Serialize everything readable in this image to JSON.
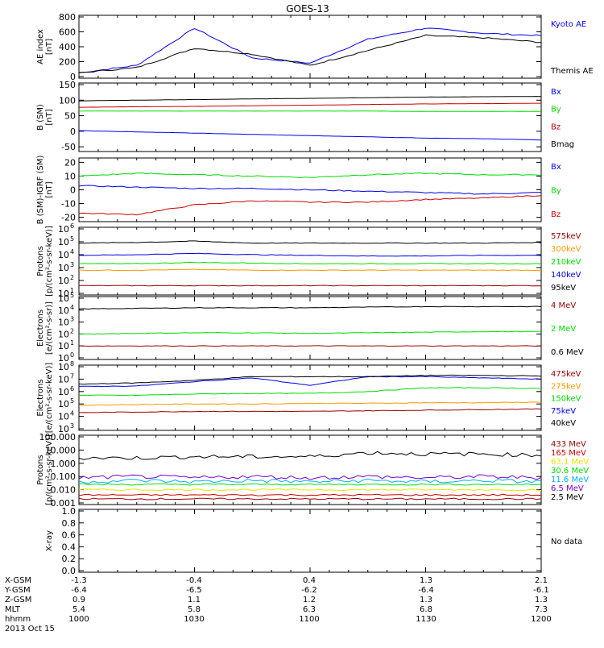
{
  "title": "GOES-13",
  "colors": {
    "black": "#000000",
    "blue": "#0000ee",
    "green": "#00dd00",
    "red": "#cc0000",
    "orange": "#ff9900",
    "yellow": "#e6e600",
    "cyan": "#00b0ff",
    "purple": "#7700cc",
    "darkred": "#990000"
  },
  "panels": [
    {
      "id": "ae",
      "ylabel_lines": [
        "AE index",
        "[nT]"
      ],
      "ticks": [
        {
          "v": 0,
          "t": "0"
        },
        {
          "v": 200,
          "t": "200"
        },
        {
          "v": 400,
          "t": "400"
        },
        {
          "v": 600,
          "t": "600"
        },
        {
          "v": 800,
          "t": "800"
        }
      ],
      "legend": [
        {
          "text": "Kyoto AE",
          "color": "blue"
        },
        {
          "text": "Themis AE",
          "color": "black"
        }
      ]
    },
    {
      "id": "bsm",
      "ylabel_lines": [
        "B (SM)",
        "[nT]"
      ],
      "ticks": [
        {
          "v": -50,
          "t": "-50"
        },
        {
          "v": 0,
          "t": "0"
        },
        {
          "v": 50,
          "t": "50"
        },
        {
          "v": 100,
          "t": "100"
        },
        {
          "v": 150,
          "t": "150"
        }
      ],
      "legend": [
        {
          "text": "Bx",
          "color": "blue"
        },
        {
          "text": "By",
          "color": "green"
        },
        {
          "text": "Bz",
          "color": "red"
        },
        {
          "text": "Bmag",
          "color": "black"
        }
      ]
    },
    {
      "id": "bigrf",
      "ylabel_lines": [
        "B (SM)-IGRF (SM)",
        "[nT]"
      ],
      "ticks": [
        {
          "v": -20,
          "t": "-20"
        },
        {
          "v": -10,
          "t": "-10"
        },
        {
          "v": 0,
          "t": "0"
        },
        {
          "v": 10,
          "t": "10"
        },
        {
          "v": 20,
          "t": "20"
        }
      ],
      "legend": [
        {
          "text": "Bx",
          "color": "blue"
        },
        {
          "text": "By",
          "color": "green"
        },
        {
          "text": "Bz",
          "color": "red"
        }
      ]
    },
    {
      "id": "protons_low",
      "ylabel_lines": [
        "Protons",
        "[p/(cm²-s-sr-keV)]"
      ],
      "ticks": [
        {
          "v": 1,
          "t": "10",
          "sup": "1"
        },
        {
          "v": 2,
          "t": "10",
          "sup": "2"
        },
        {
          "v": 3,
          "t": "10",
          "sup": "3"
        },
        {
          "v": 4,
          "t": "10",
          "sup": "4"
        },
        {
          "v": 5,
          "t": "10",
          "sup": "5"
        },
        {
          "v": 6,
          "t": "10",
          "sup": "6"
        }
      ],
      "legend": [
        {
          "text": "575keV",
          "color": "darkred"
        },
        {
          "text": "300keV",
          "color": "orange"
        },
        {
          "text": "210keV",
          "color": "green"
        },
        {
          "text": "140keV",
          "color": "blue"
        },
        {
          "text": "95keV",
          "color": "black"
        }
      ]
    },
    {
      "id": "electrons_mev",
      "ylabel_lines": [
        "Electrons",
        "[e/(cm²-s-sr)]"
      ],
      "ticks": [
        {
          "v": 0,
          "t": "10",
          "sup": "0"
        },
        {
          "v": 1,
          "t": "10",
          "sup": "1"
        },
        {
          "v": 2,
          "t": "10",
          "sup": "2"
        },
        {
          "v": 3,
          "t": "10",
          "sup": "3"
        },
        {
          "v": 4,
          "t": "10",
          "sup": "4"
        },
        {
          "v": 5,
          "t": "10",
          "sup": "5"
        }
      ],
      "legend": [
        {
          "text": "4 MeV",
          "color": "darkred"
        },
        {
          "text": "2 MeV",
          "color": "green"
        },
        {
          "text": "0.6 MeV",
          "color": "black"
        }
      ]
    },
    {
      "id": "electrons_kev",
      "ylabel_lines": [
        "Electrons",
        "[e/(cm²-s-sr-keV)]"
      ],
      "ticks": [
        {
          "v": 3,
          "t": "10",
          "sup": "3"
        },
        {
          "v": 4,
          "t": "10",
          "sup": "4"
        },
        {
          "v": 5,
          "t": "10",
          "sup": "5"
        },
        {
          "v": 6,
          "t": "10",
          "sup": "6"
        },
        {
          "v": 7,
          "t": "10",
          "sup": "7"
        },
        {
          "v": 8,
          "t": "10",
          "sup": "8"
        }
      ],
      "legend": [
        {
          "text": "475keV",
          "color": "darkred"
        },
        {
          "text": "275keV",
          "color": "orange"
        },
        {
          "text": "150keV",
          "color": "green"
        },
        {
          "text": "75keV",
          "color": "blue"
        },
        {
          "text": "40keV",
          "color": "black"
        }
      ]
    },
    {
      "id": "protons_mev",
      "ylabel_lines": [
        "Protons",
        "[p/(cm²-s-sr-keV)]"
      ],
      "ticks": [
        {
          "v": -3,
          "t": "0.001"
        },
        {
          "v": -2,
          "t": "0.010"
        },
        {
          "v": -1,
          "t": "0.100"
        },
        {
          "v": 0,
          "t": "1.000"
        },
        {
          "v": 1,
          "t": "10.000"
        },
        {
          "v": 2,
          "t": "100.000"
        }
      ],
      "legend": [
        {
          "text": "433 MeV",
          "color": "darkred"
        },
        {
          "text": "165 MeV",
          "color": "red"
        },
        {
          "text": "63.1 MeV",
          "color": "yellow"
        },
        {
          "text": "30.6 MeV",
          "color": "green"
        },
        {
          "text": "11.6 MeV",
          "color": "cyan"
        },
        {
          "text": "6.5 MeV",
          "color": "purple"
        },
        {
          "text": "2.5 MeV",
          "color": "black"
        }
      ]
    },
    {
      "id": "xray",
      "ylabel_lines": [
        "X-ray"
      ],
      "ticks": [
        {
          "v": 0,
          "t": "0.0"
        },
        {
          "v": 0.2,
          "t": "0.2"
        },
        {
          "v": 0.4,
          "t": "0.4"
        },
        {
          "v": 0.6,
          "t": "0.6"
        },
        {
          "v": 0.8,
          "t": "0.8"
        },
        {
          "v": 1.0,
          "t": "1.0"
        }
      ],
      "legend": [
        {
          "text": "No data",
          "color": "black"
        }
      ]
    }
  ],
  "xaxis": {
    "rows": [
      {
        "label": "X-GSM",
        "values": [
          "-1.3",
          "-0.4",
          "0.4",
          "1.3",
          "2.1"
        ]
      },
      {
        "label": "Y-GSM",
        "values": [
          "-6.4",
          "-6.5",
          "-6.2",
          "-6.4",
          "-6.1"
        ]
      },
      {
        "label": "Z-GSM",
        "values": [
          "0.9",
          "1.1",
          "1.2",
          "1.3",
          "1.3"
        ]
      },
      {
        "label": "MLT",
        "values": [
          "5.4",
          "5.8",
          "6.3",
          "6.8",
          "7.3"
        ]
      },
      {
        "label": "hhmm",
        "values": [
          "1000",
          "1030",
          "1100",
          "1130",
          "1200"
        ]
      }
    ],
    "date": "2013 Oct 15"
  },
  "chart_data": [
    {
      "type": "line",
      "title": "GOES-13",
      "ylabel": "AE index [nT]",
      "ylim": [
        0,
        800
      ],
      "x_time_hhmm": [
        "1000",
        "1015",
        "1030",
        "1045",
        "1100",
        "1115",
        "1130",
        "1145",
        "1200"
      ],
      "series": [
        {
          "name": "Kyoto AE",
          "values": [
            50,
            150,
            650,
            250,
            180,
            500,
            650,
            580,
            550
          ]
        },
        {
          "name": "Themis AE",
          "values": [
            50,
            120,
            380,
            300,
            150,
            350,
            550,
            520,
            460
          ]
        }
      ]
    },
    {
      "type": "line",
      "ylabel": "B (SM) [nT]",
      "ylim": [
        -60,
        150
      ],
      "series": [
        {
          "name": "Bx",
          "values": [
            2,
            -2,
            -6,
            -10,
            -14,
            -18,
            -22,
            -24,
            -28
          ]
        },
        {
          "name": "By",
          "values": [
            65,
            65,
            65,
            65,
            65,
            65,
            64,
            64,
            64
          ]
        },
        {
          "name": "Bz",
          "values": [
            77,
            79,
            80,
            82,
            84,
            86,
            88,
            89,
            90
          ]
        },
        {
          "name": "Bmag",
          "values": [
            98,
            100,
            102,
            104,
            106,
            108,
            110,
            111,
            112
          ]
        }
      ]
    },
    {
      "type": "line",
      "ylabel": "B (SM)-IGRF (SM) [nT]",
      "ylim": [
        -22,
        22
      ],
      "series": [
        {
          "name": "Bx",
          "values": [
            3,
            2,
            1,
            1,
            0,
            -1,
            -2,
            -3,
            -2
          ]
        },
        {
          "name": "By",
          "values": [
            10,
            12,
            11,
            10,
            9,
            11,
            12,
            11,
            11
          ]
        },
        {
          "name": "Bz",
          "values": [
            -17,
            -18,
            -11,
            -8,
            -9,
            -9,
            -7,
            -6,
            -4
          ]
        }
      ]
    },
    {
      "type": "line",
      "ylabel": "Protons",
      "log_decades": [
        1,
        6
      ],
      "series": [
        {
          "name": "575keV",
          "values": [
            1.6,
            1.6,
            1.6,
            1.6,
            1.6,
            1.6,
            1.6,
            1.6,
            1.6
          ]
        },
        {
          "name": "300keV",
          "values": [
            2.8,
            2.8,
            2.85,
            2.8,
            2.8,
            2.8,
            2.8,
            2.8,
            2.8
          ]
        },
        {
          "name": "210keV",
          "values": [
            3.3,
            3.3,
            3.4,
            3.35,
            3.3,
            3.3,
            3.3,
            3.3,
            3.3
          ]
        },
        {
          "name": "140keV",
          "values": [
            3.95,
            4.0,
            4.1,
            4.0,
            3.95,
            3.9,
            3.9,
            3.95,
            3.95
          ]
        },
        {
          "name": "95keV",
          "values": [
            4.9,
            4.95,
            5.05,
            4.9,
            4.9,
            4.9,
            4.9,
            4.9,
            4.95
          ]
        }
      ]
    },
    {
      "type": "line",
      "ylabel": "Electrons",
      "log_decades": [
        0,
        5
      ],
      "series": [
        {
          "name": "4 MeV",
          "values": [
            1.0,
            1.0,
            1.0,
            1.0,
            1.0,
            1.0,
            1.0,
            1.0,
            1.0
          ]
        },
        {
          "name": "2 MeV",
          "values": [
            2.0,
            2.05,
            2.1,
            2.1,
            2.05,
            2.1,
            2.15,
            2.2,
            2.2
          ]
        },
        {
          "name": "0.6 MeV",
          "values": [
            4.1,
            4.15,
            4.2,
            4.2,
            4.2,
            4.25,
            4.3,
            4.3,
            4.3
          ]
        }
      ]
    },
    {
      "type": "line",
      "ylabel": "Electrons",
      "log_decades": [
        3,
        8
      ],
      "series": [
        {
          "name": "475keV",
          "values": [
            4.3,
            4.35,
            4.4,
            4.4,
            4.4,
            4.45,
            4.5,
            4.55,
            4.6
          ]
        },
        {
          "name": "275keV",
          "values": [
            4.9,
            4.95,
            5.0,
            5.0,
            5.05,
            5.05,
            5.1,
            5.1,
            5.15
          ]
        },
        {
          "name": "150keV",
          "values": [
            5.7,
            5.7,
            5.8,
            5.85,
            5.85,
            6.0,
            6.3,
            6.3,
            6.25
          ]
        },
        {
          "name": "75keV",
          "values": [
            6.4,
            6.45,
            6.8,
            7.1,
            6.5,
            7.2,
            7.2,
            7.1,
            7.0
          ]
        },
        {
          "name": "40keV",
          "values": [
            6.6,
            6.7,
            6.9,
            7.2,
            7.2,
            7.2,
            7.3,
            7.3,
            7.25
          ]
        }
      ]
    },
    {
      "type": "line",
      "ylabel": "Protons",
      "log_decades": [
        -3,
        2
      ],
      "series": [
        {
          "name": "433 MeV",
          "values": [
            -2.7,
            -2.7,
            -2.7,
            -2.7,
            -2.7,
            -2.7,
            -2.7,
            -2.7,
            -2.7
          ]
        },
        {
          "name": "165 MeV",
          "values": [
            -2.4,
            -2.4,
            -2.4,
            -2.4,
            -2.4,
            -2.4,
            -2.4,
            -2.4,
            -2.4
          ]
        },
        {
          "name": "63.1 MeV",
          "values": [
            -2.0,
            -2.0,
            -2.0,
            -2.0,
            -2.0,
            -2.0,
            -2.0,
            -2.0,
            -2.0
          ]
        },
        {
          "name": "30.6 MeV",
          "values": [
            -1.6,
            -1.6,
            -1.6,
            -1.6,
            -1.6,
            -1.6,
            -1.6,
            -1.6,
            -1.6
          ]
        },
        {
          "name": "11.6 MeV",
          "values": [
            -1.4,
            -1.3,
            -1.4,
            -1.3,
            -1.4,
            -1.3,
            -1.4,
            -1.3,
            -1.4
          ]
        },
        {
          "name": "6.5 MeV",
          "values": [
            -1.1,
            -1.0,
            -1.1,
            -1.0,
            -1.1,
            -1.0,
            -1.1,
            -1.0,
            -1.1
          ]
        },
        {
          "name": "2.5 MeV",
          "values": [
            0.4,
            0.4,
            0.5,
            0.5,
            0.5,
            0.8,
            0.7,
            0.7,
            0.6
          ]
        }
      ]
    },
    {
      "type": "line",
      "ylabel": "X-ray",
      "ylim": [
        0,
        1
      ],
      "series": []
    }
  ]
}
